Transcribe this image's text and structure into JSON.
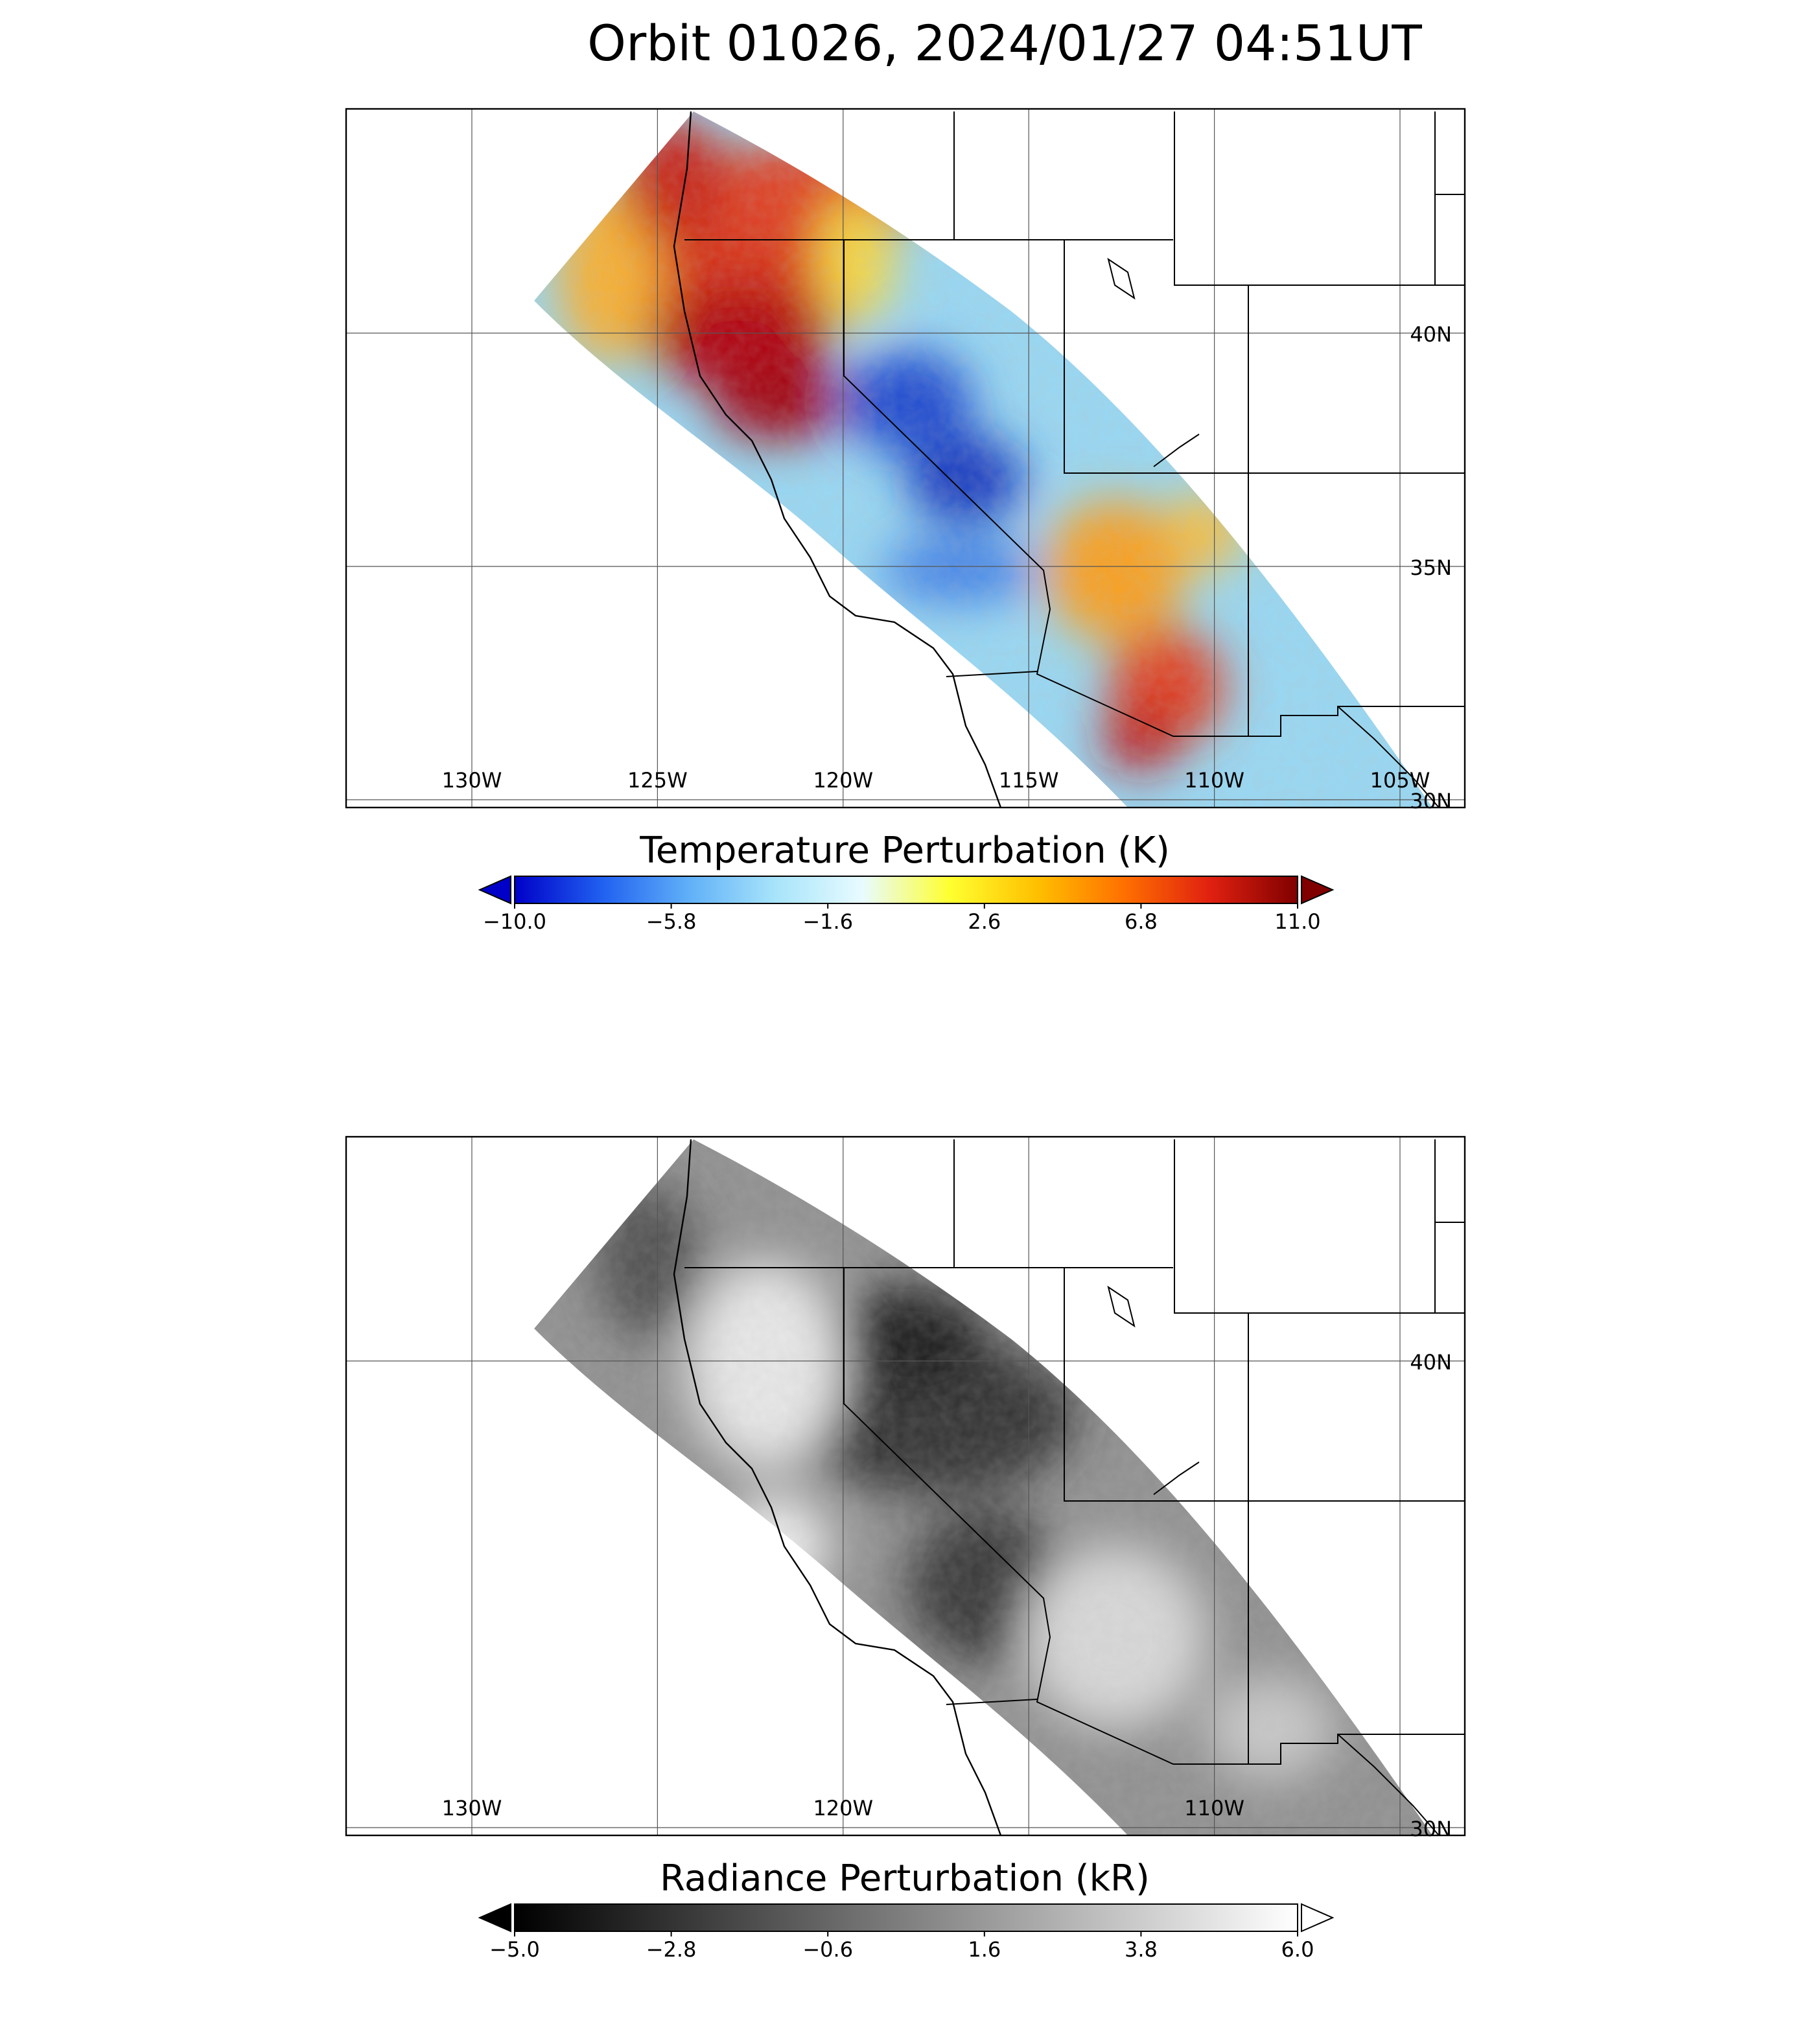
{
  "title": "Orbit 01026, 2024/01/27 04:51UT",
  "panels": [
    {
      "lon_ticks": [
        {
          "value": -130,
          "label": "130W"
        },
        {
          "value": -125,
          "label": "125W"
        },
        {
          "value": -120,
          "label": "120W"
        },
        {
          "value": -115,
          "label": "115W"
        },
        {
          "value": -110,
          "label": "110W"
        },
        {
          "value": -105,
          "label": "105W"
        }
      ],
      "lat_ticks": [
        {
          "value": 40,
          "label": "40N"
        },
        {
          "value": 35,
          "label": "35N"
        },
        {
          "value": 30,
          "label": "30N"
        }
      ],
      "colorbar": {
        "title": "Temperature Perturbation (K)",
        "range": [
          -10,
          11
        ],
        "colors": [
          "#0000c8",
          "#2060f0",
          "#60b0f8",
          "#a8e4fa",
          "#e8fbff",
          "#ffff30",
          "#ffc000",
          "#ff7000",
          "#e02010",
          "#800000"
        ],
        "ticks": [
          {
            "value": -10,
            "label": "−10.0"
          },
          {
            "value": -5.8,
            "label": "−5.8"
          },
          {
            "value": -1.6,
            "label": "−1.6"
          },
          {
            "value": 2.6,
            "label": "2.6"
          },
          {
            "value": 6.8,
            "label": "6.8"
          },
          {
            "value": 11,
            "label": "11.0"
          }
        ]
      }
    },
    {
      "grid_lon": [
        -130,
        -125,
        -120,
        -115,
        -110,
        -105
      ],
      "lon_ticks": [
        {
          "value": -130,
          "label": "130W"
        },
        {
          "value": -120,
          "label": "120W"
        },
        {
          "value": -110,
          "label": "110W"
        }
      ],
      "lat_ticks": [
        {
          "value": 40,
          "label": "40N"
        },
        {
          "value": 30,
          "label": "30N"
        }
      ],
      "colorbar": {
        "title": "Radiance Perturbation (kR)",
        "range": [
          -5,
          6
        ],
        "colors": [
          "#000000",
          "#ffffff"
        ],
        "ticks": [
          {
            "value": -5,
            "label": "−5.0"
          },
          {
            "value": -2.8,
            "label": "−2.8"
          },
          {
            "value": -0.6,
            "label": "−0.6"
          },
          {
            "value": 1.6,
            "label": "1.6"
          },
          {
            "value": 3.8,
            "label": "3.8"
          },
          {
            "value": 6,
            "label": "6.0"
          }
        ]
      }
    }
  ]
}
